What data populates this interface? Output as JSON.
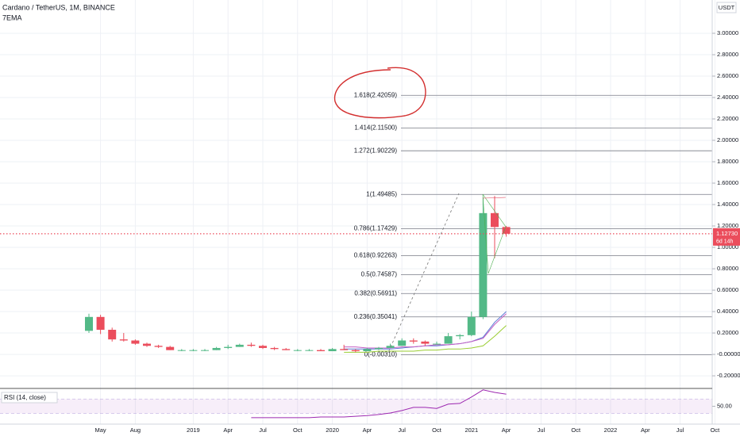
{
  "chart_data": {
    "type": "candlestick",
    "title": "Cardano / TetherUS, 1M, BINANCE",
    "subtitle": "7EMA",
    "currency": "USDT",
    "up_color": "#53b987",
    "down_color": "#eb4d5c",
    "grid": true,
    "categories": [
      null,
      "May",
      null,
      null,
      "Aug",
      null,
      null,
      null,
      null,
      "2019",
      null,
      null,
      "Apr",
      null,
      null,
      "Jul",
      null,
      null,
      "Oct",
      null,
      null,
      "2020",
      null,
      null,
      "Apr",
      null,
      null,
      "Jul",
      null,
      null,
      "Oct",
      null,
      null,
      "2021",
      null,
      null,
      "Apr",
      null,
      null,
      "Jul",
      null,
      null,
      "Oct",
      null,
      null,
      "2022",
      null,
      null,
      "Apr",
      null,
      null,
      "Jul",
      null,
      null,
      "Oct"
    ],
    "open": [
      0.22,
      0.35,
      0.23,
      0.14,
      0.13,
      0.1,
      0.08,
      0.07,
      0.04,
      0.04,
      0.04,
      0.04,
      0.06,
      0.07,
      0.09,
      0.08,
      0.06,
      0.05,
      0.04,
      0.04,
      0.04,
      0.03,
      0.05,
      0.04,
      0.03,
      0.05,
      0.06,
      0.08,
      0.13,
      0.12,
      0.1,
      0.1,
      0.17,
      0.18,
      0.35,
      1.32,
      1.19,
      null,
      null,
      null,
      null,
      null,
      null,
      null,
      null,
      null,
      null,
      null,
      null,
      null,
      null,
      null,
      null,
      null,
      null
    ],
    "high": [
      0.38,
      0.37,
      0.25,
      0.2,
      0.14,
      0.11,
      0.09,
      0.08,
      0.05,
      0.05,
      0.05,
      0.07,
      0.09,
      0.1,
      0.11,
      0.09,
      0.07,
      0.06,
      0.05,
      0.05,
      0.05,
      0.06,
      0.09,
      0.05,
      0.06,
      0.07,
      0.1,
      0.15,
      0.15,
      0.13,
      0.12,
      0.2,
      0.19,
      0.4,
      1.47,
      1.48,
      1.2,
      null,
      null,
      null,
      null,
      null,
      null,
      null,
      null,
      null,
      null,
      null,
      null,
      null,
      null,
      null,
      null,
      null,
      null
    ],
    "low": [
      0.2,
      0.19,
      0.12,
      0.12,
      0.09,
      0.07,
      0.06,
      0.04,
      0.03,
      0.03,
      0.03,
      0.04,
      0.05,
      0.07,
      0.07,
      0.05,
      0.04,
      0.04,
      0.03,
      0.03,
      0.03,
      0.03,
      0.04,
      0.02,
      0.03,
      0.04,
      0.06,
      0.08,
      0.1,
      0.08,
      0.09,
      0.1,
      0.14,
      0.17,
      0.33,
      0.9,
      1.1,
      null,
      null,
      null,
      null,
      null,
      null,
      null,
      null,
      null,
      null,
      null,
      null,
      null,
      null,
      null,
      null,
      null,
      null
    ],
    "close": [
      0.35,
      0.23,
      0.14,
      0.13,
      0.1,
      0.08,
      0.07,
      0.04,
      0.04,
      0.04,
      0.04,
      0.06,
      0.07,
      0.09,
      0.08,
      0.06,
      0.05,
      0.04,
      0.04,
      0.04,
      0.03,
      0.05,
      0.04,
      0.03,
      0.05,
      0.06,
      0.08,
      0.13,
      0.12,
      0.1,
      0.1,
      0.17,
      0.18,
      0.35,
      1.32,
      1.19,
      1.1273,
      null,
      null,
      null,
      null,
      null,
      null,
      null,
      null,
      null,
      null,
      null,
      null,
      null,
      null,
      null,
      null,
      null,
      null
    ],
    "series": [
      {
        "color": "#5b7bd5",
        "values": [
          null,
          null,
          null,
          null,
          null,
          null,
          null,
          null,
          null,
          null,
          null,
          null,
          null,
          null,
          null,
          null,
          null,
          null,
          null,
          null,
          null,
          null,
          0.05,
          0.05,
          0.05,
          0.05,
          0.05,
          0.06,
          0.07,
          0.08,
          0.08,
          0.09,
          0.1,
          0.12,
          0.16,
          0.3,
          0.4,
          null,
          null,
          null,
          null,
          null,
          null,
          null,
          null,
          null,
          null,
          null,
          null,
          null,
          null,
          null,
          null,
          null,
          null
        ]
      },
      {
        "color": "#c45ec4",
        "values": [
          null,
          null,
          null,
          null,
          null,
          null,
          null,
          null,
          null,
          null,
          null,
          null,
          null,
          null,
          null,
          null,
          null,
          null,
          null,
          null,
          null,
          null,
          0.07,
          0.07,
          0.06,
          0.06,
          0.06,
          0.07,
          0.07,
          0.08,
          0.09,
          0.09,
          0.1,
          0.12,
          0.15,
          0.28,
          0.38,
          null,
          null,
          null,
          null,
          null,
          null,
          null,
          null,
          null,
          null,
          null,
          null,
          null,
          null,
          null,
          null,
          null,
          null
        ]
      },
      {
        "color": "#9acd32",
        "values": [
          null,
          null,
          null,
          null,
          null,
          null,
          null,
          null,
          null,
          null,
          null,
          null,
          null,
          null,
          null,
          null,
          null,
          null,
          null,
          null,
          null,
          null,
          0.02,
          0.02,
          0.02,
          0.03,
          0.03,
          0.03,
          0.03,
          0.04,
          0.04,
          0.05,
          0.05,
          0.06,
          0.08,
          0.17,
          0.27,
          null,
          null,
          null,
          null,
          null,
          null,
          null,
          null,
          null,
          null,
          null,
          null,
          null,
          null,
          null,
          null,
          null,
          null
        ]
      }
    ],
    "ylim": [
      -0.318,
      3.311
    ],
    "yticks": [
      {
        "value": -0.2,
        "label": "-0.20000"
      },
      {
        "value": 0,
        "label": "-0.00000"
      },
      {
        "value": 0.2,
        "label": "0.20000"
      },
      {
        "value": 0.4,
        "label": "0.40000"
      },
      {
        "value": 0.6,
        "label": "0.60000"
      },
      {
        "value": 0.8,
        "label": "0.80000"
      },
      {
        "value": 1.0,
        "label": "1.00000"
      },
      {
        "value": 1.2,
        "label": "1.20000"
      },
      {
        "value": 1.4,
        "label": "1.40000"
      },
      {
        "value": 1.6,
        "label": "1.60000"
      },
      {
        "value": 1.8,
        "label": "1.80000"
      },
      {
        "value": 2.0,
        "label": "2.00000"
      },
      {
        "value": 2.2,
        "label": "2.20000"
      },
      {
        "value": 2.4,
        "label": "2.40000"
      },
      {
        "value": 2.6,
        "label": "2.60000"
      },
      {
        "value": 2.8,
        "label": "2.80000"
      },
      {
        "value": 3.0,
        "label": "3.00000"
      }
    ],
    "fib_levels": [
      {
        "value": 2.42059,
        "label": "1.618(2.42059)"
      },
      {
        "value": 2.115,
        "label": "1.414(2.11500)"
      },
      {
        "value": 1.90229,
        "label": "1.272(1.90229)"
      },
      {
        "value": 1.49485,
        "label": "1(1.49485)"
      },
      {
        "value": 1.17429,
        "label": "0.786(1.17429)"
      },
      {
        "value": 0.92263,
        "label": "0.618(0.92263)"
      },
      {
        "value": 0.74587,
        "label": "0.5(0.74587)"
      },
      {
        "value": 0.56911,
        "label": "0.382(0.56911)"
      },
      {
        "value": 0.35041,
        "label": "0.236(0.35041)"
      },
      {
        "value": -0.0031,
        "label": "0(-0.00310)"
      }
    ],
    "last_price": {
      "value": 1.1273,
      "label": "1.12730",
      "countdown": "6d 14h"
    },
    "rsi": {
      "title": "RSI (14, close)",
      "color": "#9c27b0",
      "ylim": [
        0,
        100
      ],
      "band": [
        30,
        70
      ],
      "yticks": [
        {
          "value": 50,
          "label": "50.00"
        }
      ],
      "values": [
        null,
        null,
        null,
        null,
        null,
        null,
        null,
        null,
        null,
        null,
        null,
        null,
        null,
        null,
        18,
        18,
        18,
        18,
        18,
        18,
        20,
        20,
        20,
        22,
        24,
        27,
        31,
        38,
        47,
        47,
        44,
        56,
        58,
        76,
        96,
        89,
        84,
        null,
        null,
        null,
        null,
        null,
        null,
        null,
        null,
        null,
        null,
        null,
        null,
        null,
        null,
        null,
        null,
        null,
        null
      ]
    }
  }
}
